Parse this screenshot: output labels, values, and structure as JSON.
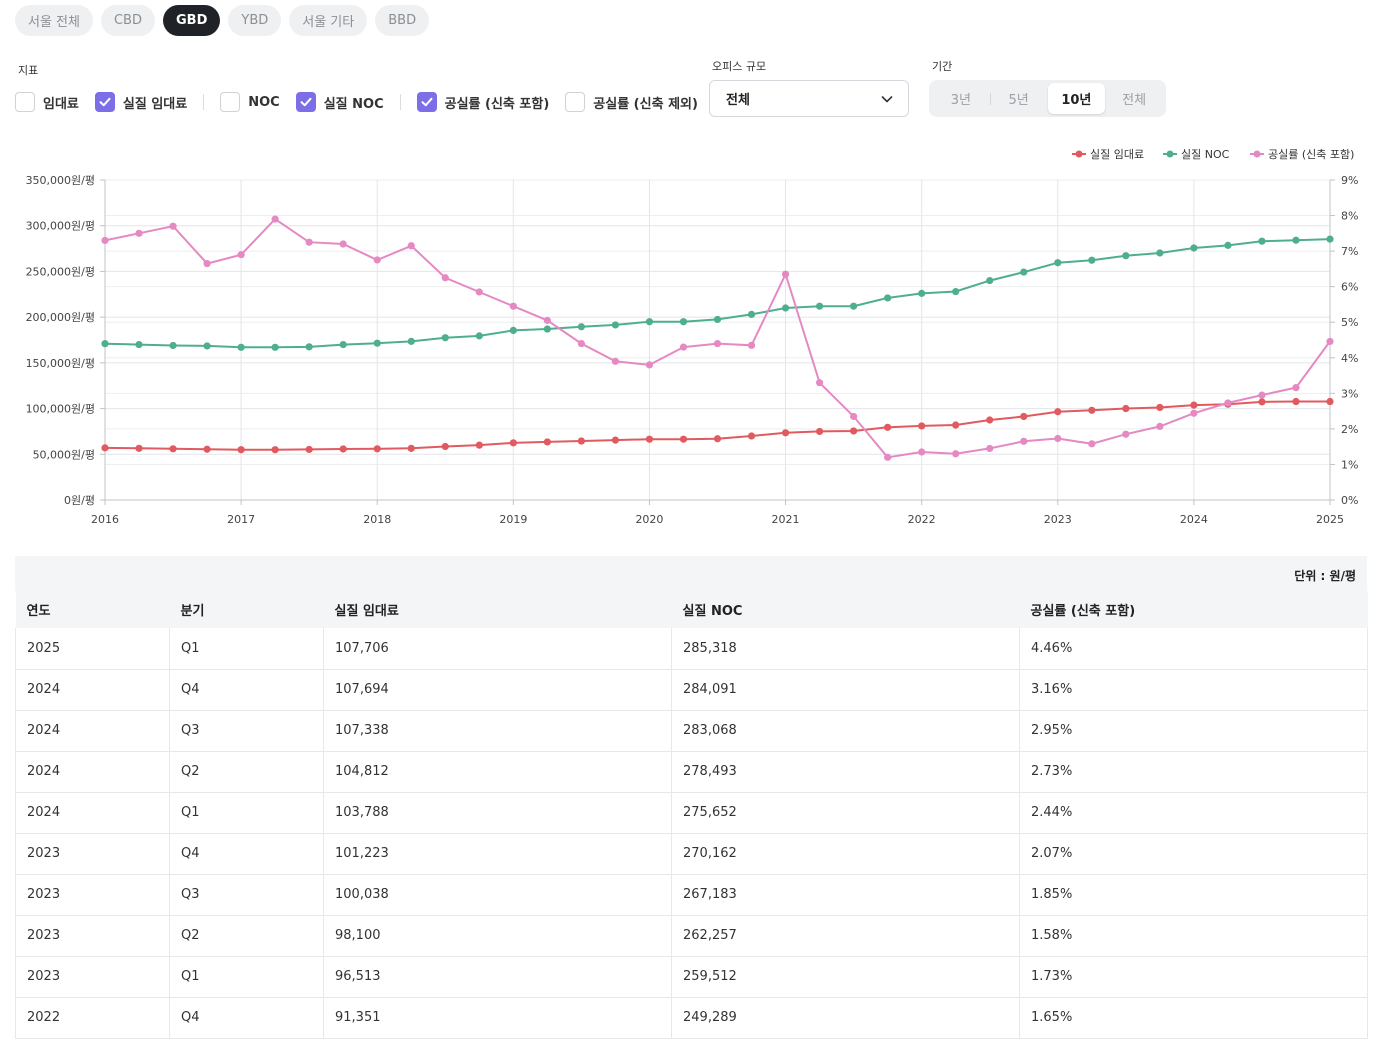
{
  "region_tabs": [
    "서울 전체",
    "CBD",
    "GBD",
    "YBD",
    "서울 기타",
    "BBD"
  ],
  "active_region": "GBD",
  "labels": {
    "metric": "지표",
    "office_size": "오피스 규모",
    "period": "기간"
  },
  "metrics": [
    {
      "label": "임대료",
      "checked": false
    },
    {
      "label": "실질 임대료",
      "checked": true
    },
    {
      "label": "NOC",
      "checked": false
    },
    {
      "label": "실질 NOC",
      "checked": true
    },
    {
      "label": "공실률 (신축 포함)",
      "checked": true
    },
    {
      "label": "공실률 (신축 제외)",
      "checked": false
    }
  ],
  "office_size": {
    "value": "전체"
  },
  "period_options": [
    "3년",
    "5년",
    "10년",
    "전체"
  ],
  "active_period": "10년",
  "colors": {
    "rent": "#e05a5f",
    "noc": "#4fae8e",
    "vacancy": "#e589c3",
    "accent": "#7c6ee6"
  },
  "chart_data": {
    "type": "line",
    "x": [
      "2016Q1",
      "2016Q2",
      "2016Q3",
      "2016Q4",
      "2017Q1",
      "2017Q2",
      "2017Q3",
      "2017Q4",
      "2018Q1",
      "2018Q2",
      "2018Q3",
      "2018Q4",
      "2019Q1",
      "2019Q2",
      "2019Q3",
      "2019Q4",
      "2020Q1",
      "2020Q2",
      "2020Q3",
      "2020Q4",
      "2021Q1",
      "2021Q2",
      "2021Q3",
      "2021Q4",
      "2022Q1",
      "2022Q2",
      "2022Q3",
      "2022Q4",
      "2023Q1",
      "2023Q2",
      "2023Q3",
      "2023Q4",
      "2024Q1",
      "2024Q2",
      "2024Q3",
      "2024Q4",
      "2025Q1"
    ],
    "x_ticks": [
      "2016",
      "2017",
      "2018",
      "2019",
      "2020",
      "2021",
      "2022",
      "2023",
      "2024",
      "2025"
    ],
    "y_left_ticks": [
      "0원/평",
      "50,000원/평",
      "100,000원/평",
      "150,000원/평",
      "200,000원/평",
      "250,000원/평",
      "300,000원/평",
      "350,000원/평"
    ],
    "y_right_ticks": [
      "0%",
      "1%",
      "2%",
      "3%",
      "4%",
      "5%",
      "6%",
      "7%",
      "8%",
      "9%"
    ],
    "ylim_left": [
      0,
      350000
    ],
    "ylim_right": [
      0,
      9
    ],
    "grid": true,
    "legend_position": "top-right",
    "series": [
      {
        "name": "실질 임대료",
        "axis": "left",
        "values": [
          57000,
          56500,
          56000,
          55500,
          55000,
          55000,
          55300,
          55800,
          56000,
          56500,
          58500,
          60000,
          62500,
          63500,
          64500,
          65500,
          66500,
          66500,
          67000,
          70000,
          73500,
          75000,
          75500,
          79500,
          81000,
          82000,
          87500,
          91351,
          96513,
          98100,
          100038,
          101223,
          103788,
          104812,
          107338,
          107694,
          107706
        ]
      },
      {
        "name": "실질 NOC",
        "axis": "left",
        "values": [
          171000,
          170000,
          169000,
          168500,
          167000,
          167000,
          167500,
          170000,
          171500,
          173500,
          177500,
          179500,
          185500,
          187000,
          189500,
          191500,
          195000,
          195000,
          197500,
          203000,
          210000,
          212000,
          212000,
          221000,
          226000,
          228000,
          240000,
          249289,
          259512,
          262257,
          267183,
          270162,
          275652,
          278493,
          283068,
          284091,
          285318
        ]
      },
      {
        "name": "공실률 (신축 포함)",
        "axis": "right",
        "values": [
          7.3,
          7.5,
          7.7,
          6.65,
          6.9,
          7.9,
          7.25,
          7.2,
          6.75,
          7.15,
          6.25,
          5.85,
          5.45,
          5.05,
          4.4,
          3.9,
          3.8,
          4.3,
          4.4,
          4.35,
          6.35,
          3.3,
          2.35,
          1.2,
          1.35,
          1.3,
          1.45,
          1.65,
          1.73,
          1.58,
          1.85,
          2.07,
          2.44,
          2.73,
          2.95,
          3.16,
          4.46
        ]
      }
    ]
  },
  "table": {
    "unit": "단위 : 원/평",
    "headers": [
      "연도",
      "분기",
      "실질 임대료",
      "실질 NOC",
      "공실률 (신축 포함)"
    ],
    "rows": [
      [
        "2025",
        "Q1",
        "107,706",
        "285,318",
        "4.46%"
      ],
      [
        "2024",
        "Q4",
        "107,694",
        "284,091",
        "3.16%"
      ],
      [
        "2024",
        "Q3",
        "107,338",
        "283,068",
        "2.95%"
      ],
      [
        "2024",
        "Q2",
        "104,812",
        "278,493",
        "2.73%"
      ],
      [
        "2024",
        "Q1",
        "103,788",
        "275,652",
        "2.44%"
      ],
      [
        "2023",
        "Q4",
        "101,223",
        "270,162",
        "2.07%"
      ],
      [
        "2023",
        "Q3",
        "100,038",
        "267,183",
        "1.85%"
      ],
      [
        "2023",
        "Q2",
        "98,100",
        "262,257",
        "1.58%"
      ],
      [
        "2023",
        "Q1",
        "96,513",
        "259,512",
        "1.73%"
      ],
      [
        "2022",
        "Q4",
        "91,351",
        "249,289",
        "1.65%"
      ]
    ]
  }
}
